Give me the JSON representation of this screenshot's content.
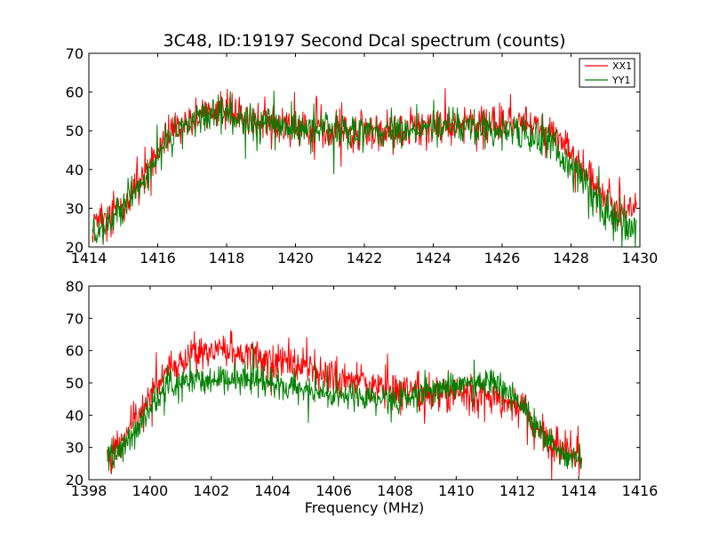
{
  "chart_data": [
    {
      "type": "line",
      "title": "3C48, ID:19197 Second Dcal spectrum (counts)",
      "xlabel": "",
      "ylabel": "",
      "xlim": [
        1414,
        1430
      ],
      "ylim": [
        20,
        70
      ],
      "xticks": [
        1414,
        1416,
        1418,
        1420,
        1422,
        1424,
        1426,
        1428,
        1430
      ],
      "yticks": [
        20,
        30,
        40,
        50,
        60,
        70
      ],
      "grid": false,
      "legend": {
        "position": "top-right",
        "entries": [
          "XX1",
          "YY1"
        ]
      },
      "series": [
        {
          "name": "XX1",
          "color": "#ff0000",
          "x_range": [
            1414.1,
            1429.9
          ],
          "envelope": {
            "x": [
              1414.1,
              1414.5,
              1415.0,
              1415.5,
              1416.0,
              1416.5,
              1417.0,
              1417.5,
              1418.0,
              1418.5,
              1419.0,
              1419.5,
              1420.0,
              1420.5,
              1421.0,
              1421.5,
              1422.0,
              1422.5,
              1423.0,
              1423.5,
              1424.0,
              1424.5,
              1425.0,
              1425.5,
              1426.0,
              1426.5,
              1427.0,
              1427.5,
              1428.0,
              1428.5,
              1429.0,
              1429.5,
              1429.9
            ],
            "y": [
              25,
              27,
              31,
              37,
              45,
              50,
              53,
              55,
              55,
              54,
              53,
              52,
              51,
              50,
              50,
              50,
              50,
              50,
              50,
              51,
              51,
              51,
              52,
              52,
              52,
              52,
              51,
              49,
              45,
              38,
              32,
              29,
              29
            ]
          },
          "noise": 4.5
        },
        {
          "name": "YY1",
          "color": "#008000",
          "x_range": [
            1414.1,
            1429.9
          ],
          "envelope": {
            "x": [
              1414.1,
              1414.5,
              1415.0,
              1415.5,
              1416.0,
              1416.5,
              1417.0,
              1417.5,
              1418.0,
              1418.5,
              1419.0,
              1419.5,
              1420.0,
              1420.5,
              1421.0,
              1421.5,
              1422.0,
              1422.5,
              1423.0,
              1423.5,
              1424.0,
              1424.5,
              1425.0,
              1425.5,
              1426.0,
              1426.5,
              1427.0,
              1427.5,
              1428.0,
              1428.5,
              1429.0,
              1429.5,
              1429.9
            ],
            "y": [
              24,
              26,
              30,
              36,
              44,
              49,
              52,
              54,
              54,
              53,
              52,
              52,
              51,
              51,
              50,
              50,
              50,
              50,
              50,
              50,
              51,
              51,
              51,
              51,
              50,
              50,
              48,
              46,
              41,
              35,
              29,
              26,
              25
            ]
          },
          "noise": 4
        }
      ]
    },
    {
      "type": "line",
      "title": "",
      "xlabel": "Frequency (MHz)",
      "ylabel": "",
      "xlim": [
        1398,
        1416
      ],
      "ylim": [
        20,
        80
      ],
      "xticks": [
        1398,
        1400,
        1402,
        1404,
        1406,
        1408,
        1410,
        1412,
        1414,
        1416
      ],
      "yticks": [
        20,
        30,
        40,
        50,
        60,
        70,
        80
      ],
      "grid": false,
      "series": [
        {
          "name": "XX1",
          "color": "#ff0000",
          "x_range": [
            1398.6,
            1414.1
          ],
          "envelope": {
            "x": [
              1398.6,
              1399.0,
              1399.5,
              1400.0,
              1400.5,
              1401.0,
              1401.5,
              1402.0,
              1402.5,
              1403.0,
              1403.5,
              1404.0,
              1404.5,
              1405.0,
              1405.5,
              1406.0,
              1406.5,
              1407.0,
              1407.5,
              1408.0,
              1408.5,
              1409.0,
              1409.5,
              1410.0,
              1410.5,
              1411.0,
              1411.5,
              1412.0,
              1412.5,
              1413.0,
              1413.5,
              1414.1
            ],
            "y": [
              28,
              31,
              38,
              47,
              53,
              57,
              59,
              60,
              60,
              60,
              59,
              58,
              57,
              56,
              54,
              52,
              51,
              50,
              49,
              48,
              48,
              47,
              47,
              47,
              46,
              46,
              45,
              43,
              37,
              32,
              29,
              27
            ]
          },
          "noise": 5
        },
        {
          "name": "YY1",
          "color": "#008000",
          "x_range": [
            1398.6,
            1414.1
          ],
          "envelope": {
            "x": [
              1398.6,
              1399.0,
              1399.5,
              1400.0,
              1400.5,
              1401.0,
              1401.5,
              1402.0,
              1402.5,
              1403.0,
              1403.5,
              1404.0,
              1404.5,
              1405.0,
              1405.5,
              1406.0,
              1406.5,
              1407.0,
              1407.5,
              1408.0,
              1408.5,
              1409.0,
              1409.5,
              1410.0,
              1410.5,
              1411.0,
              1411.5,
              1412.0,
              1412.5,
              1413.0,
              1413.5,
              1414.1
            ],
            "y": [
              26,
              29,
              35,
              43,
              48,
              50,
              51,
              51,
              51,
              51,
              51,
              50,
              49,
              48,
              47,
              46,
              45,
              45,
              45,
              45,
              46,
              47,
              48,
              49,
              50,
              50,
              49,
              45,
              38,
              32,
              28,
              26
            ]
          },
          "noise": 4
        }
      ]
    }
  ]
}
